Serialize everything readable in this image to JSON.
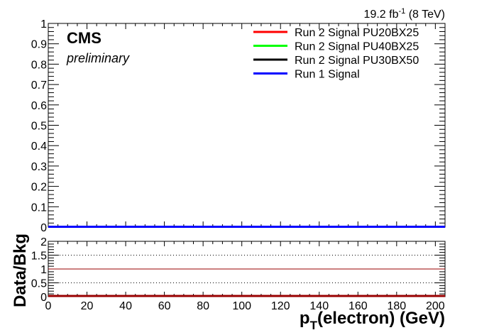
{
  "chart_data": {
    "type": "line",
    "header": {
      "experiment": "CMS",
      "status": "preliminary",
      "lumi_value": "19.2 fb",
      "lumi_sup": "-1",
      "lumi_energy": " (8 TeV)"
    },
    "main": {
      "ylim": [
        0,
        1
      ],
      "yticks": [
        "0",
        "0.1",
        "0.2",
        "0.3",
        "0.4",
        "0.5",
        "0.6",
        "0.7",
        "0.8",
        "0.9",
        "1"
      ],
      "series": [
        {
          "name": "Run 2 Signal PU20BX25",
          "color": "#ff0000",
          "values": [
            0,
            0
          ]
        },
        {
          "name": "Run 2 Signal PU40BX25",
          "color": "#00ff00",
          "values": [
            0,
            0
          ]
        },
        {
          "name": "Run 2 Signal PU30BX50",
          "color": "#000000",
          "values": [
            0,
            0
          ]
        },
        {
          "name": "Run 1 Signal",
          "color": "#0000ff",
          "values": [
            0,
            0
          ]
        }
      ],
      "x": [
        0,
        205
      ]
    },
    "ratio": {
      "ylabel": "Data/Bkg",
      "ylim": [
        0,
        2
      ],
      "yticks": [
        "0",
        "0.5",
        "1",
        "1.5",
        "2"
      ],
      "reference_lines": [
        0.5,
        1.5
      ],
      "unity_line": 1,
      "unity_color": "#990000",
      "ratio_values": [
        0,
        0
      ],
      "ratio_color": "#990000"
    },
    "xaxis": {
      "xlim": [
        0,
        205
      ],
      "xticks": [
        "0",
        "20",
        "40",
        "60",
        "80",
        "100",
        "120",
        "140",
        "160",
        "180",
        "200"
      ],
      "title_p": "p",
      "title_sub": "T",
      "title_rest": "(electron) (GeV)"
    }
  }
}
